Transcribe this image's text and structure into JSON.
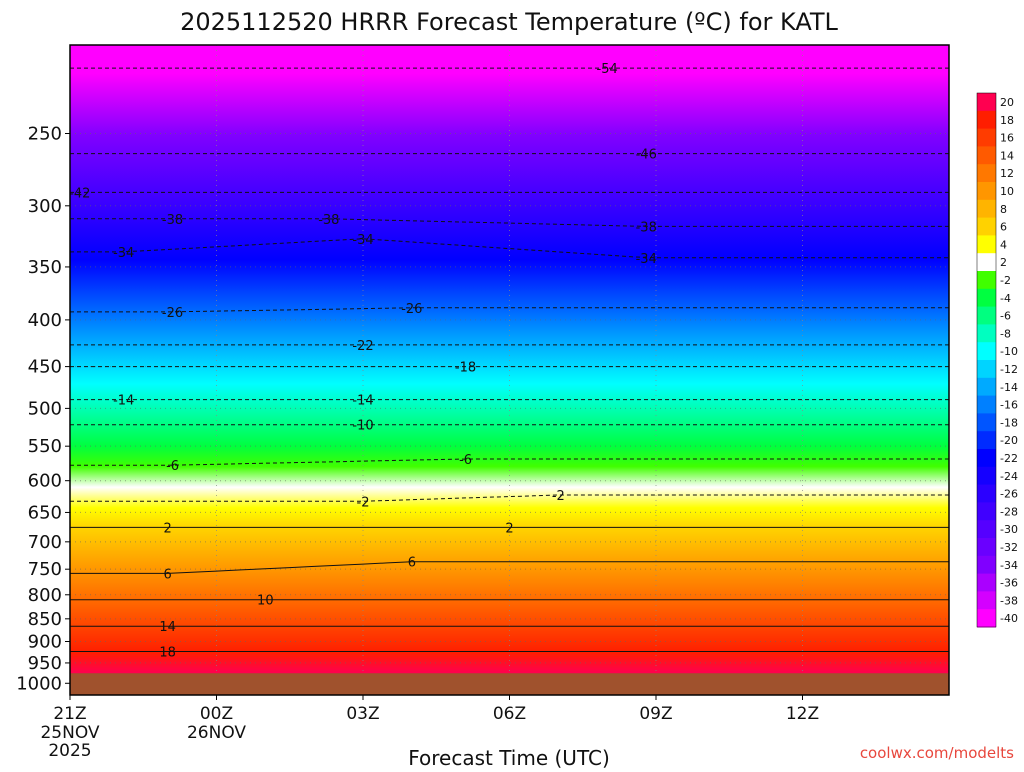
{
  "chart_data": {
    "type": "heatmap",
    "title": "2025112520 HRRR Forecast Temperature (ºC) for KATL",
    "xlabel": "Forecast Time (UTC)",
    "ylabel": "",
    "credit": "coolwx.com/modelts",
    "x_ticks": [
      {
        "label": "21Z",
        "sub1": "25NOV",
        "sub2": "2025"
      },
      {
        "label": "00Z",
        "sub1": "26NOV",
        "sub2": ""
      },
      {
        "label": "03Z",
        "sub1": "",
        "sub2": ""
      },
      {
        "label": "06Z",
        "sub1": "",
        "sub2": ""
      },
      {
        "label": "09Z",
        "sub1": "",
        "sub2": ""
      },
      {
        "label": "12Z",
        "sub1": "",
        "sub2": ""
      }
    ],
    "x_hours": [
      0,
      1,
      2,
      3,
      4,
      5,
      6,
      7,
      8,
      9,
      10,
      11,
      12,
      13,
      14,
      15,
      16,
      17,
      18
    ],
    "y_scale": "log-pressure",
    "y_ticks": [
      250,
      300,
      350,
      400,
      450,
      500,
      550,
      600,
      650,
      700,
      750,
      800,
      850,
      900,
      950,
      1000
    ],
    "ylim_hPa": [
      200,
      1030
    ],
    "surface_hPa": 975,
    "surface_color": "#a0522d",
    "colorbar": {
      "labels": [
        "20",
        "18",
        "16",
        "14",
        "12",
        "10",
        "8",
        "6",
        "4",
        "2",
        "-2",
        "-4",
        "-6",
        "-8",
        "-10",
        "-12",
        "-14",
        "-16",
        "-18",
        "-20",
        "-22",
        "-24",
        "-26",
        "-28",
        "-30",
        "-32",
        "-34",
        "-36",
        "-38",
        "-40"
      ],
      "colors": [
        "#ff0050",
        "#ff1e00",
        "#ff3c00",
        "#ff5a00",
        "#ff7800",
        "#ff9600",
        "#ffb400",
        "#ffd200",
        "#ffff00",
        "#ffffff",
        "#40ff00",
        "#00ff40",
        "#00ff80",
        "#00ffc0",
        "#00ffff",
        "#00d4ff",
        "#00aaff",
        "#0080ff",
        "#0055ff",
        "#002bff",
        "#0000ff",
        "#1500ff",
        "#2b00ff",
        "#4000ff",
        "#5500ff",
        "#6a00ff",
        "#8000ff",
        "#aa00ff",
        "#d400ff",
        "#ff00ff"
      ]
    },
    "contour_labels": [
      {
        "text": "-54",
        "hour": 11.0,
        "hPa": 212
      },
      {
        "text": "-46",
        "hour": 11.8,
        "hPa": 263
      },
      {
        "text": "-42",
        "hour": 0.2,
        "hPa": 290
      },
      {
        "text": "-38",
        "hour": 2.1,
        "hPa": 310
      },
      {
        "text": "-38",
        "hour": 5.3,
        "hPa": 310
      },
      {
        "text": "-38",
        "hour": 11.8,
        "hPa": 316
      },
      {
        "text": "-34",
        "hour": 1.1,
        "hPa": 337
      },
      {
        "text": "-34",
        "hour": 6.0,
        "hPa": 326
      },
      {
        "text": "-34",
        "hour": 11.8,
        "hPa": 342
      },
      {
        "text": "-26",
        "hour": 2.1,
        "hPa": 392
      },
      {
        "text": "-26",
        "hour": 7.0,
        "hPa": 388
      },
      {
        "text": "-22",
        "hour": 6.0,
        "hPa": 426
      },
      {
        "text": "-18",
        "hour": 8.1,
        "hPa": 450
      },
      {
        "text": "-14",
        "hour": 1.1,
        "hPa": 489
      },
      {
        "text": "-14",
        "hour": 6.0,
        "hPa": 489
      },
      {
        "text": "-10",
        "hour": 6.0,
        "hPa": 521
      },
      {
        "text": "-6",
        "hour": 2.1,
        "hPa": 577
      },
      {
        "text": "-6",
        "hour": 8.1,
        "hPa": 568
      },
      {
        "text": "-2",
        "hour": 6.0,
        "hPa": 632
      },
      {
        "text": "-2",
        "hour": 10.0,
        "hPa": 622
      },
      {
        "text": "2",
        "hour": 2.0,
        "hPa": 675
      },
      {
        "text": "2",
        "hour": 9.0,
        "hPa": 675
      },
      {
        "text": "6",
        "hour": 2.0,
        "hPa": 758
      },
      {
        "text": "6",
        "hour": 7.0,
        "hPa": 736
      },
      {
        "text": "10",
        "hour": 4.0,
        "hPa": 810
      },
      {
        "text": "14",
        "hour": 2.0,
        "hPa": 866
      },
      {
        "text": "18",
        "hour": 2.0,
        "hPa": 923
      }
    ]
  }
}
